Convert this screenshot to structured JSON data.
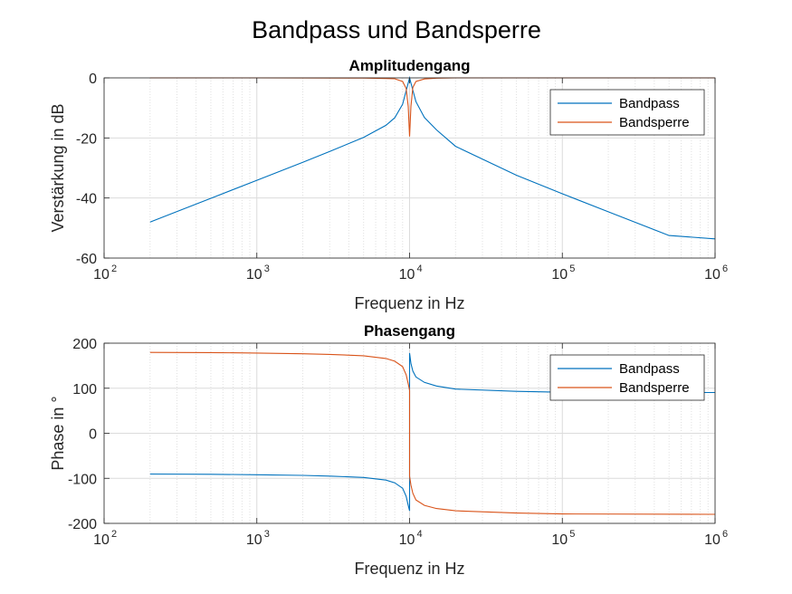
{
  "figure_title": "Bandpass und Bandsperre",
  "colors": {
    "bandpass": "#0072BD",
    "bandsperre": "#D95319",
    "grid": "#dcdcdc",
    "axis": "#262626"
  },
  "chart_data": [
    {
      "type": "line",
      "title": "Amplitudengang",
      "xlabel": "Frequenz in Hz",
      "ylabel": "Verstärkung in dB",
      "xscale": "log",
      "xlim": [
        100,
        1000000
      ],
      "ylim": [
        -60,
        0
      ],
      "grid": true,
      "x_ticks": [
        {
          "base": "10",
          "exp": "2"
        },
        {
          "base": "10",
          "exp": "3"
        },
        {
          "base": "10",
          "exp": "4"
        },
        {
          "base": "10",
          "exp": "5"
        },
        {
          "base": "10",
          "exp": "6"
        }
      ],
      "y_ticks": [
        "0",
        "-20",
        "-40",
        "-60"
      ],
      "legend_position": "top-right",
      "series": [
        {
          "name": "Bandpass",
          "color": "#0072BD",
          "x": [
            200,
            300,
            500,
            1000,
            2000,
            3000,
            5000,
            7000,
            8000,
            9000,
            9500,
            10000,
            10500,
            11000,
            12500,
            15000,
            20000,
            50000,
            100000,
            200000,
            500000,
            1000000
          ],
          "y": [
            -48,
            -44.5,
            -40.1,
            -34.1,
            -28.1,
            -24.5,
            -19.8,
            -15.8,
            -13.3,
            -8.8,
            -4.3,
            0,
            -4.1,
            -7.9,
            -13.2,
            -17.3,
            -22.8,
            -32.4,
            -38.6,
            -44.6,
            -52.5,
            -53.6
          ]
        },
        {
          "name": "Bandsperre",
          "color": "#D95319",
          "x": [
            200,
            1000,
            5000,
            7000,
            8000,
            9000,
            9500,
            9800,
            10000,
            10200,
            10500,
            11000,
            12500,
            15000,
            20000,
            100000,
            1000000
          ],
          "y": [
            0,
            0,
            -0.05,
            -0.2,
            -0.3,
            -1.2,
            -3.5,
            -9.5,
            -19.5,
            -9.5,
            -3.2,
            -1.2,
            -0.35,
            -0.1,
            0,
            0,
            0
          ]
        }
      ]
    },
    {
      "type": "line",
      "title": "Phasengang",
      "xlabel": "Frequenz in Hz",
      "ylabel": "Phase in °",
      "xscale": "log",
      "xlim": [
        100,
        1000000
      ],
      "ylim": [
        -200,
        200
      ],
      "grid": true,
      "x_ticks": [
        {
          "base": "10",
          "exp": "2"
        },
        {
          "base": "10",
          "exp": "3"
        },
        {
          "base": "10",
          "exp": "4"
        },
        {
          "base": "10",
          "exp": "5"
        },
        {
          "base": "10",
          "exp": "6"
        }
      ],
      "y_ticks": [
        "200",
        "100",
        "0",
        "-100",
        "-200"
      ],
      "legend_position": "top-right",
      "series": [
        {
          "name": "Bandpass",
          "color": "#0072BD",
          "x": [
            200,
            500,
            1000,
            2000,
            3000,
            5000,
            7000,
            8000,
            9000,
            9500,
            9800,
            9999,
            10001,
            10200,
            10500,
            11000,
            12500,
            15000,
            20000,
            50000,
            100000,
            1000000
          ],
          "y": [
            -90.5,
            -91,
            -92,
            -93.5,
            -95,
            -98,
            -104,
            -110,
            -122,
            -140,
            -160,
            -172,
            178,
            155,
            138,
            125,
            113,
            105,
            98,
            93,
            91,
            90.5
          ]
        },
        {
          "name": "Bandsperre",
          "color": "#D95319",
          "x": [
            200,
            500,
            1000,
            2000,
            3000,
            5000,
            7000,
            8000,
            9000,
            9500,
            9800,
            9999,
            10001,
            10200,
            10500,
            11000,
            12500,
            15000,
            20000,
            50000,
            100000,
            1000000
          ],
          "y": [
            179.5,
            179,
            178,
            176.5,
            175,
            172,
            166,
            160,
            148,
            130,
            110,
            95,
            -95,
            -115,
            -133,
            -148,
            -160,
            -167,
            -172,
            -177,
            -179,
            -180
          ]
        }
      ]
    }
  ]
}
